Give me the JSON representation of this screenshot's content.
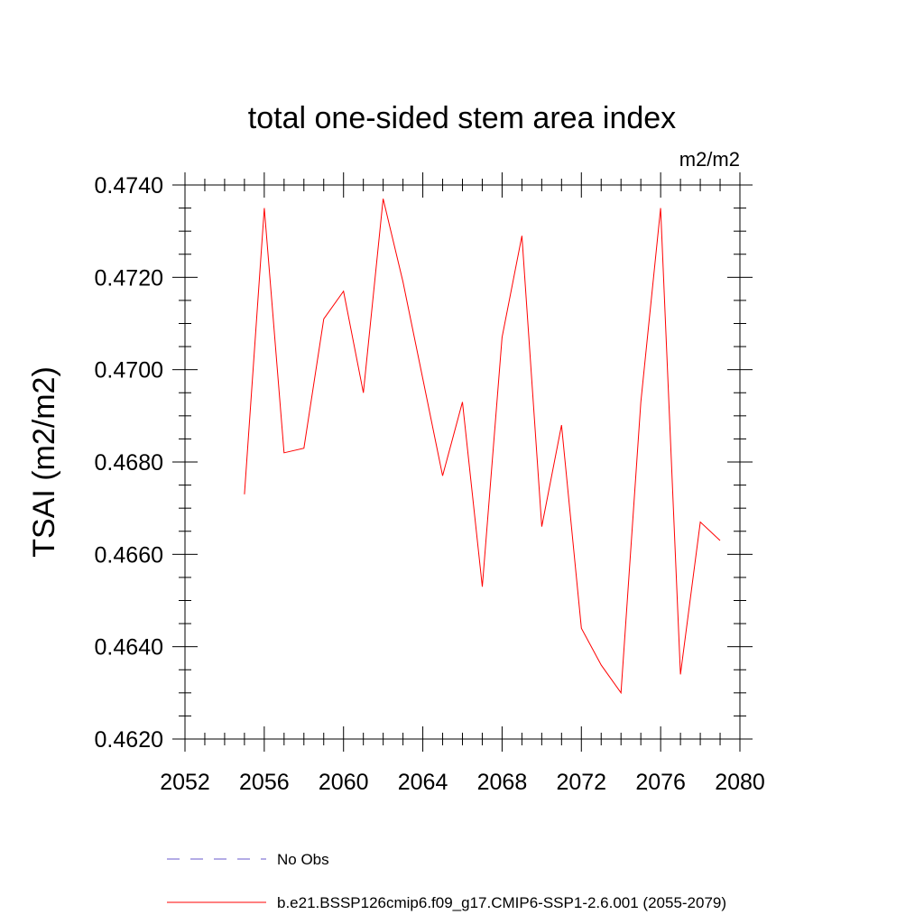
{
  "chart_data": {
    "type": "line",
    "title": "total one-sided stem area index",
    "units": "m2/m2",
    "ylabel": "TSAI  (m2/m2)",
    "xlabel": "",
    "xlim": [
      2052,
      2080
    ],
    "ylim": [
      0.462,
      0.474
    ],
    "x_ticks": [
      "2052",
      "2056",
      "2060",
      "2064",
      "2068",
      "2072",
      "2076",
      "2080"
    ],
    "y_ticks": [
      "0.4620",
      "0.4640",
      "0.4660",
      "0.4680",
      "0.4700",
      "0.4720",
      "0.4740"
    ],
    "grid": false,
    "legend_position": "bottom",
    "series": [
      {
        "name": "No Obs",
        "color": "#6a5acd",
        "dash": "dashed",
        "x": [],
        "y": []
      },
      {
        "name": "b.e21.BSSP126cmip6.f09_g17.CMIP6-SSP1-2.6.001 (2055-2079)",
        "color": "#ff0000",
        "dash": "solid",
        "x": [
          2055,
          2056,
          2057,
          2058,
          2059,
          2060,
          2061,
          2062,
          2063,
          2064,
          2065,
          2066,
          2067,
          2068,
          2069,
          2070,
          2071,
          2072,
          2073,
          2074,
          2075,
          2076,
          2077,
          2078,
          2079
        ],
        "y": [
          0.4673,
          0.4735,
          0.4682,
          0.4683,
          0.4711,
          0.4717,
          0.4695,
          0.4737,
          0.4719,
          0.4698,
          0.4677,
          0.4693,
          0.4653,
          0.4707,
          0.4729,
          0.4666,
          0.4688,
          0.4644,
          0.4636,
          0.463,
          0.4693,
          0.4735,
          0.4634,
          0.4667,
          0.4663
        ]
      }
    ]
  }
}
